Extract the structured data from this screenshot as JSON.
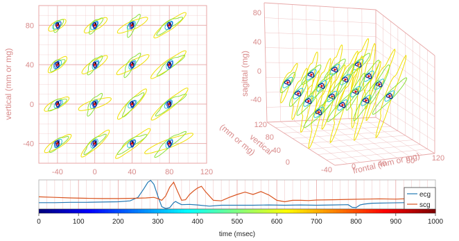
{
  "chart_data": [
    {
      "type": "scatter",
      "panel": "2d-projection",
      "xticks": [
        "-40",
        "0",
        "40",
        "80",
        "120"
      ],
      "yticks": [
        "80",
        "40",
        "0",
        "-40"
      ],
      "x_tick_values": [
        -40,
        0,
        40,
        80,
        120
      ],
      "y_tick_values": [
        80,
        40,
        0,
        -40
      ],
      "xlim": [
        -60,
        120
      ],
      "ylim": [
        -60,
        100
      ],
      "ylabel": "vertical (mm or mg)",
      "grid": true,
      "grid_color": "#e7a6a6",
      "centers": {
        "x": [
          -40,
          0,
          40,
          80
        ],
        "y": [
          80,
          40,
          0,
          -40
        ]
      },
      "loop_colors": [
        "#f0e000",
        "#8be23a",
        "#23c7d4",
        "#1f4fe0",
        "#0b1f8f"
      ]
    },
    {
      "type": "scatter",
      "panel": "3d-projection",
      "zticks": [
        "80",
        "40",
        "0",
        "-40"
      ],
      "zlabel": "sagittal (mg)",
      "xticks": [
        "-40",
        "0",
        "40",
        "80",
        "120"
      ],
      "xlabel": "frontal (mm or mg)",
      "yticks": [
        "120",
        "80",
        "40",
        "0"
      ],
      "ylabel_line1": "vertical",
      "ylabel_line2": "(mm or mg)",
      "grid": true
    },
    {
      "type": "line",
      "panel": "time-series",
      "series": [
        {
          "name": "ecg",
          "color": "#1f77b4",
          "x": [
            0,
            40,
            80,
            120,
            160,
            200,
            230,
            250,
            265,
            275,
            282,
            290,
            300,
            310,
            320,
            330,
            340,
            345,
            350,
            360,
            380,
            400,
            430,
            460,
            500,
            540,
            580,
            620,
            660,
            700,
            740,
            780,
            790,
            800,
            810,
            820,
            840,
            880,
            920,
            960,
            1000
          ],
          "y": [
            0.22,
            0.22,
            0.23,
            0.23,
            0.24,
            0.25,
            0.28,
            0.4,
            0.7,
            0.92,
            0.98,
            0.85,
            0.45,
            0.08,
            0.02,
            0.05,
            0.22,
            0.26,
            0.22,
            0.15,
            0.16,
            0.14,
            0.1,
            0.13,
            0.13,
            0.13,
            0.14,
            0.13,
            0.14,
            0.13,
            0.14,
            0.15,
            0.06,
            0.05,
            0.14,
            0.17,
            0.2,
            0.21,
            0.22,
            0.22,
            0.22
          ]
        },
        {
          "name": "scg",
          "color": "#d9531e",
          "x": [
            0,
            40,
            80,
            120,
            160,
            200,
            240,
            270,
            290,
            300,
            310,
            320,
            330,
            340,
            350,
            360,
            370,
            380,
            390,
            400,
            410,
            420,
            440,
            460,
            480,
            500,
            520,
            540,
            560,
            580,
            600,
            620,
            640,
            660,
            680,
            700,
            740,
            780,
            820,
            860,
            900,
            940,
            1000
          ],
          "y": [
            0.42,
            0.4,
            0.38,
            0.37,
            0.36,
            0.36,
            0.37,
            0.38,
            0.4,
            0.36,
            0.3,
            0.45,
            0.75,
            0.92,
            0.6,
            0.3,
            0.32,
            0.5,
            0.62,
            0.72,
            0.78,
            0.6,
            0.3,
            0.28,
            0.4,
            0.5,
            0.58,
            0.5,
            0.6,
            0.48,
            0.3,
            0.25,
            0.3,
            0.3,
            0.29,
            0.31,
            0.32,
            0.33,
            0.34,
            0.35,
            0.34,
            0.36,
            0.35
          ]
        }
      ],
      "legend": [
        "ecg",
        "scg"
      ],
      "legend_position": "right",
      "xlim": [
        0,
        1000
      ],
      "grid": true
    },
    {
      "type": "heatmap",
      "panel": "colorbar",
      "colormap": "jet",
      "xticks": [
        "0",
        "100",
        "200",
        "300",
        "400",
        "500",
        "600",
        "700",
        "800",
        "900",
        "1000"
      ],
      "tick_values": [
        0,
        100,
        200,
        300,
        400,
        500,
        600,
        700,
        800,
        900,
        1000
      ],
      "xlim": [
        0,
        1000
      ],
      "xlabel": "time (msec)"
    }
  ]
}
